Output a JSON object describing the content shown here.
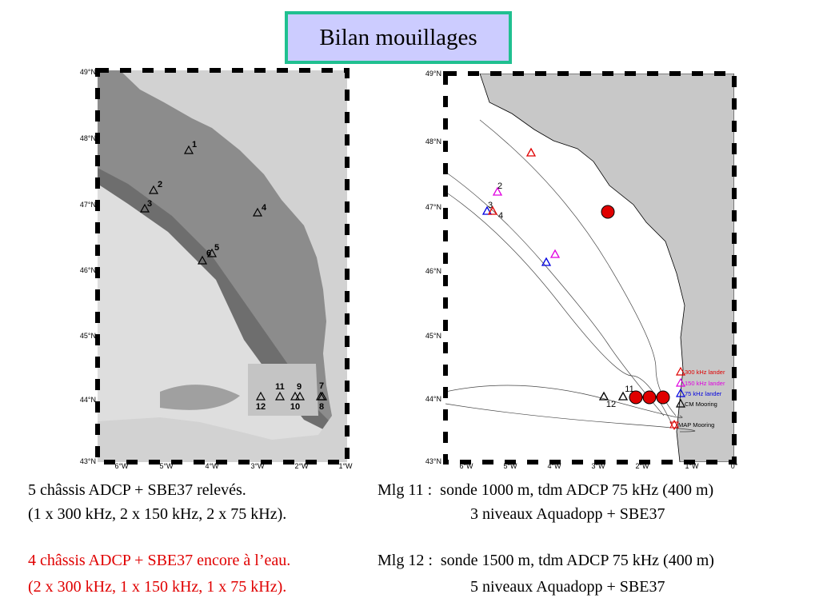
{
  "title": "Bilan mouillages",
  "maps": [
    {
      "lat_labels": [
        "49°N",
        "48°N",
        "47°N",
        "46°N",
        "45°N",
        "44°N",
        "43°N"
      ],
      "lon_labels": [
        "6°W",
        "5°W",
        "4°W",
        "3°W",
        "2°W",
        "1°W"
      ],
      "stations": [
        "1",
        "2",
        "3",
        "4",
        "5",
        "6",
        "7",
        "8",
        "9",
        "10",
        "11",
        "12"
      ]
    },
    {
      "lat_labels": [
        "49°N",
        "48°N",
        "47°N",
        "46°N",
        "45°N",
        "44°N",
        "43°N"
      ],
      "lon_labels": [
        "6°W",
        "5°W",
        "4°W",
        "3°W",
        "2°W",
        "1°W",
        "0°"
      ],
      "stations": [
        "2",
        "3",
        "4",
        "11",
        "12"
      ],
      "legend": [
        "300 kHz lander",
        "150 kHz lander",
        "75 kHz lander",
        "CM Mooring",
        "MAP Mooring"
      ]
    }
  ],
  "notes": {
    "left": [
      "5 châssis ADCP + SBE37 relevés.",
      "(1 x 300 kHz, 2 x 150 kHz, 2 x 75 kHz).",
      "4 châssis ADCP + SBE37 encore à l’eau.",
      "(2 x 300 kHz, 1 x 150 kHz, 1 x 75 kHz)."
    ],
    "right": [
      "Mlg 11 :  sonde 1000 m, tdm ADCP 75 kHz (400 m)",
      "3 niveaux Aquadopp + SBE37",
      "Mlg 12 :  sonde 1500 m, tdm ADCP 75 kHz (400 m)",
      "5 niveaux Aquadopp + SBE37"
    ]
  }
}
